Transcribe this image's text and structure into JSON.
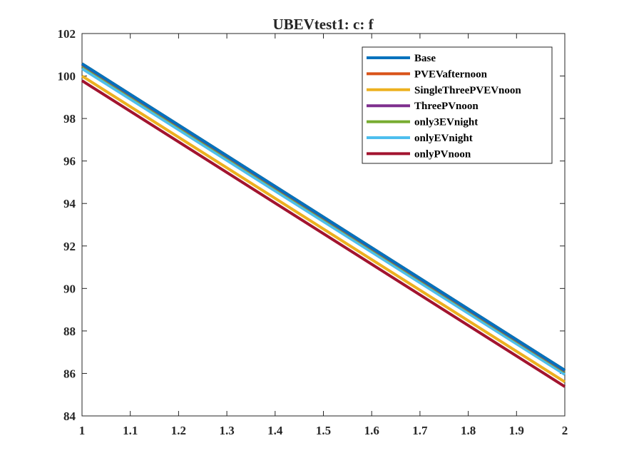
{
  "chart_data": {
    "type": "line",
    "title": "UBEVtest1: c: f",
    "xlabel": "",
    "ylabel": "",
    "xlim": [
      1,
      2
    ],
    "ylim": [
      84,
      102
    ],
    "xticks": [
      "1",
      "1.1",
      "1.2",
      "1.3",
      "1.4",
      "1.5",
      "1.6",
      "1.7",
      "1.8",
      "1.9",
      "2"
    ],
    "yticks": [
      "84",
      "86",
      "88",
      "90",
      "92",
      "94",
      "96",
      "98",
      "100",
      "102"
    ],
    "grid": false,
    "legend_position": "top-right",
    "x": [
      1,
      2
    ],
    "series": [
      {
        "name": "Base",
        "color": "#0072BD",
        "values": [
          100.58,
          86.15
        ]
      },
      {
        "name": "PVEVafternoon",
        "color": "#D95319",
        "values": [
          100.58,
          86.15
        ]
      },
      {
        "name": "SingleThreePVEVnoon",
        "color": "#EDB120",
        "values": [
          100.0,
          85.6
        ]
      },
      {
        "name": "ThreePVnoon",
        "color": "#7E2F8E",
        "values": [
          100.55,
          86.12
        ]
      },
      {
        "name": "only3EVnight",
        "color": "#77AC30",
        "values": [
          100.5,
          86.08
        ]
      },
      {
        "name": "onlyEVnight",
        "color": "#4DBEEE",
        "values": [
          100.35,
          85.95
        ]
      },
      {
        "name": "onlyPVnoon",
        "color": "#A2142F",
        "values": [
          99.78,
          85.38
        ]
      }
    ]
  }
}
